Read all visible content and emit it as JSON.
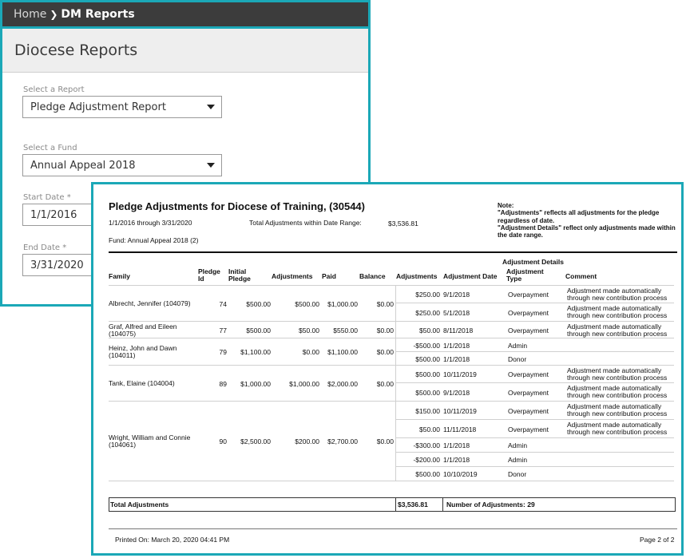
{
  "breadcrumb": {
    "home": "Home",
    "current": "DM Reports"
  },
  "page_title": "Diocese Reports",
  "form": {
    "report_label": "Select a Report",
    "report_value": "Pledge Adjustment Report",
    "fund_label": "Select a Fund",
    "fund_value": "Annual Appeal 2018",
    "start_label": "Start Date *",
    "start_value": "1/1/2016",
    "end_label": "End Date *",
    "end_value": "3/31/2020"
  },
  "report": {
    "title": "Pledge Adjustments for Diocese of Training,  (30544)",
    "date_range": "1/1/2016 through 3/31/2020",
    "total_label": "Total Adjustments within Date Range:",
    "total_value": "$3,536.81",
    "fund": "Fund: Annual Appeal 2018 (2)",
    "note": [
      "Note:",
      "\"Adjustments\" reflects all adjustments for the pledge regardless of date.",
      "\"Adjustment Details\" reflect only adjustments made within the date range."
    ],
    "group_header": "Adjustment Details",
    "headers": {
      "family": "Family",
      "pledge_id": "Pledge Id",
      "initial_pledge": "Initial Pledge",
      "adjustments": "Adjustments",
      "paid": "Paid",
      "balance": "Balance",
      "d_adjustments": "Adjustments",
      "d_date": "Adjustment Date",
      "d_type": "Adjustment Type",
      "d_comment": "Comment"
    },
    "families": [
      {
        "family": "Albrecht, Jennifer (104079)",
        "pledge_id": "74",
        "initial": "$500.00",
        "adjustments": "$500.00",
        "paid": "$1,000.00",
        "balance": "$0.00"
      },
      {
        "family": "Graf, Alfred and Eileen (104075)",
        "pledge_id": "77",
        "initial": "$500.00",
        "adjustments": "$50.00",
        "paid": "$550.00",
        "balance": "$0.00"
      },
      {
        "family": "Heinz, John and Dawn (104011)",
        "pledge_id": "79",
        "initial": "$1,100.00",
        "adjustments": "$0.00",
        "paid": "$1,100.00",
        "balance": "$0.00"
      },
      {
        "family": "Tank, Elaine (104004)",
        "pledge_id": "89",
        "initial": "$1,000.00",
        "adjustments": "$1,000.00",
        "paid": "$2,000.00",
        "balance": "$0.00"
      },
      {
        "family": "Wright, William and Connie (104061)",
        "pledge_id": "90",
        "initial": "$2,500.00",
        "adjustments": "$200.00",
        "paid": "$2,700.00",
        "balance": "$0.00"
      }
    ],
    "details": [
      {
        "amount": "$250.00",
        "date": "9/1/2018",
        "type": "Overpayment",
        "comment": "Adjustment made automatically through new contribution process"
      },
      {
        "amount": "$250.00",
        "date": "5/1/2018",
        "type": "Overpayment",
        "comment": "Adjustment made automatically through new contribution process"
      },
      {
        "amount": "$50.00",
        "date": "8/11/2018",
        "type": "Overpayment",
        "comment": "Adjustment made automatically through new contribution process"
      },
      {
        "amount": "-$500.00",
        "date": "1/1/2018",
        "type": "Admin",
        "comment": ""
      },
      {
        "amount": "$500.00",
        "date": "1/1/2018",
        "type": "Donor",
        "comment": ""
      },
      {
        "amount": "$500.00",
        "date": "10/11/2019",
        "type": "Overpayment",
        "comment": "Adjustment made automatically through new contribution process"
      },
      {
        "amount": "$500.00",
        "date": "9/1/2018",
        "type": "Overpayment",
        "comment": "Adjustment made automatically through new contribution process"
      },
      {
        "amount": "$150.00",
        "date": "10/11/2019",
        "type": "Overpayment",
        "comment": "Adjustment made automatically through new contribution process"
      },
      {
        "amount": "$50.00",
        "date": "11/11/2018",
        "type": "Overpayment",
        "comment": "Adjustment made automatically through new contribution process"
      },
      {
        "amount": "-$300.00",
        "date": "1/1/2018",
        "type": "Admin",
        "comment": ""
      },
      {
        "amount": "-$200.00",
        "date": "1/1/2018",
        "type": "Admin",
        "comment": ""
      },
      {
        "amount": "$500.00",
        "date": "10/10/2019",
        "type": "Donor",
        "comment": ""
      }
    ],
    "totals": {
      "label": "Total Adjustments",
      "value": "$3,536.81",
      "count_label": "Number of Adjustments: 29"
    },
    "printed_on": "Printed On: March 20, 2020 04:41 PM",
    "page": "Page 2 of 2"
  },
  "colors": {
    "accent": "#1ba8b7",
    "header_bar": "#3c3c3c",
    "title_bar": "#eeeeee"
  },
  "icons": [
    "chevron-right-icon",
    "caret-down-icon"
  ]
}
